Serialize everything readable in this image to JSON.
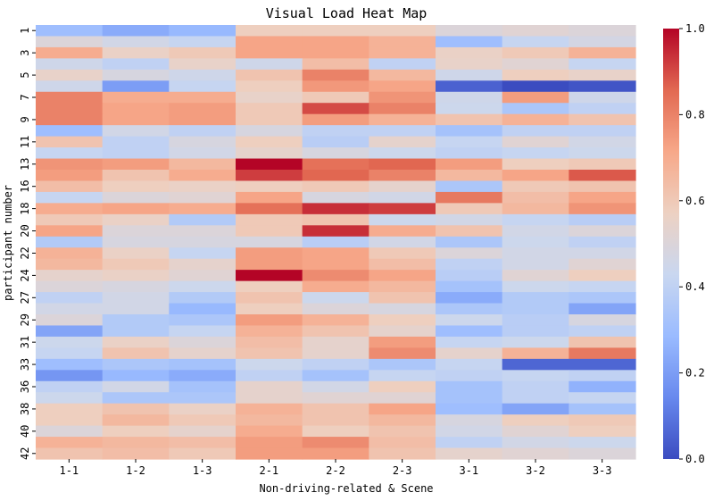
{
  "chart_data": {
    "type": "heatmap",
    "title": "Visual Load Heat Map",
    "xlabel": "Non-driving-related & Scene",
    "ylabel": "participant number",
    "x_categories": [
      "1-1",
      "1-2",
      "1-3",
      "2-1",
      "2-2",
      "2-3",
      "3-1",
      "3-2",
      "3-3"
    ],
    "y_tick_labels": [
      "1",
      "3",
      "5",
      "7",
      "9",
      "11",
      "13",
      "16",
      "18",
      "20",
      "22",
      "24",
      "27",
      "29",
      "31",
      "33",
      "36",
      "38",
      "40",
      "42"
    ],
    "row_count": 39,
    "colormap": "coolwarm",
    "value_range": [
      0,
      1
    ],
    "colorbar_ticks": [
      "0.0",
      "0.2",
      "0.4",
      "0.6",
      "0.8",
      "1.0"
    ],
    "colormap_stops": [
      "#3b4cc0",
      "#6889ee",
      "#9abbff",
      "#c9d7f0",
      "#edd1c2",
      "#f7a889",
      "#e26952",
      "#b40426"
    ],
    "values": [
      [
        0.3,
        0.24,
        0.28,
        0.58,
        0.58,
        0.58,
        0.5,
        0.52,
        0.5
      ],
      [
        0.5,
        0.46,
        0.42,
        0.72,
        0.72,
        0.68,
        0.3,
        0.42,
        0.47
      ],
      [
        0.7,
        0.56,
        0.6,
        0.72,
        0.72,
        0.68,
        0.56,
        0.6,
        0.68
      ],
      [
        0.45,
        0.4,
        0.55,
        0.45,
        0.64,
        0.4,
        0.55,
        0.52,
        0.42
      ],
      [
        0.55,
        0.48,
        0.45,
        0.62,
        0.8,
        0.66,
        0.45,
        0.58,
        0.55
      ],
      [
        0.45,
        0.2,
        0.42,
        0.58,
        0.75,
        0.72,
        0.05,
        0.0,
        0.02
      ],
      [
        0.8,
        0.7,
        0.7,
        0.55,
        0.6,
        0.76,
        0.45,
        0.74,
        0.45
      ],
      [
        0.8,
        0.72,
        0.74,
        0.6,
        0.9,
        0.8,
        0.44,
        0.34,
        0.4
      ],
      [
        0.8,
        0.72,
        0.74,
        0.6,
        0.74,
        0.68,
        0.62,
        0.68,
        0.62
      ],
      [
        0.3,
        0.46,
        0.4,
        0.48,
        0.4,
        0.4,
        0.32,
        0.4,
        0.4
      ],
      [
        0.62,
        0.4,
        0.48,
        0.58,
        0.38,
        0.54,
        0.42,
        0.52,
        0.46
      ],
      [
        0.42,
        0.4,
        0.46,
        0.54,
        0.48,
        0.44,
        0.4,
        0.42,
        0.44
      ],
      [
        0.76,
        0.74,
        0.66,
        1.0,
        0.84,
        0.86,
        0.74,
        0.58,
        0.6
      ],
      [
        0.74,
        0.62,
        0.7,
        0.92,
        0.86,
        0.8,
        0.66,
        0.72,
        0.88
      ],
      [
        0.64,
        0.58,
        0.56,
        0.58,
        0.6,
        0.54,
        0.34,
        0.6,
        0.62
      ],
      [
        0.42,
        0.5,
        0.52,
        0.72,
        0.48,
        0.46,
        0.82,
        0.64,
        0.72
      ],
      [
        0.7,
        0.72,
        0.7,
        0.84,
        0.94,
        0.92,
        0.6,
        0.66,
        0.76
      ],
      [
        0.6,
        0.56,
        0.36,
        0.6,
        0.62,
        0.44,
        0.46,
        0.42,
        0.38
      ],
      [
        0.72,
        0.5,
        0.5,
        0.6,
        0.94,
        0.7,
        0.62,
        0.46,
        0.5
      ],
      [
        0.36,
        0.48,
        0.48,
        0.48,
        0.38,
        0.46,
        0.34,
        0.44,
        0.4
      ],
      [
        0.68,
        0.56,
        0.42,
        0.74,
        0.72,
        0.6,
        0.5,
        0.46,
        0.46
      ],
      [
        0.66,
        0.6,
        0.54,
        0.74,
        0.72,
        0.64,
        0.4,
        0.46,
        0.52
      ],
      [
        0.54,
        0.56,
        0.52,
        1.0,
        0.78,
        0.72,
        0.38,
        0.52,
        0.58
      ],
      [
        0.5,
        0.48,
        0.44,
        0.58,
        0.7,
        0.66,
        0.32,
        0.44,
        0.42
      ],
      [
        0.4,
        0.46,
        0.36,
        0.62,
        0.44,
        0.62,
        0.24,
        0.36,
        0.34
      ],
      [
        0.46,
        0.46,
        0.28,
        0.58,
        0.5,
        0.48,
        0.34,
        0.36,
        0.22
      ],
      [
        0.5,
        0.36,
        0.34,
        0.74,
        0.68,
        0.58,
        0.44,
        0.38,
        0.48
      ],
      [
        0.22,
        0.36,
        0.42,
        0.68,
        0.62,
        0.54,
        0.3,
        0.38,
        0.4
      ],
      [
        0.44,
        0.56,
        0.5,
        0.64,
        0.54,
        0.74,
        0.42,
        0.44,
        0.62
      ],
      [
        0.42,
        0.62,
        0.54,
        0.62,
        0.54,
        0.78,
        0.54,
        0.68,
        0.82
      ],
      [
        0.3,
        0.34,
        0.32,
        0.44,
        0.4,
        0.34,
        0.42,
        0.06,
        0.06
      ],
      [
        0.18,
        0.28,
        0.24,
        0.4,
        0.32,
        0.42,
        0.4,
        0.42,
        0.4
      ],
      [
        0.4,
        0.46,
        0.32,
        0.54,
        0.46,
        0.58,
        0.32,
        0.4,
        0.26
      ],
      [
        0.44,
        0.34,
        0.34,
        0.54,
        0.52,
        0.52,
        0.32,
        0.4,
        0.42
      ],
      [
        0.58,
        0.62,
        0.56,
        0.68,
        0.62,
        0.72,
        0.3,
        0.22,
        0.32
      ],
      [
        0.58,
        0.66,
        0.6,
        0.66,
        0.62,
        0.66,
        0.48,
        0.58,
        0.6
      ],
      [
        0.5,
        0.58,
        0.54,
        0.7,
        0.58,
        0.62,
        0.46,
        0.52,
        0.58
      ],
      [
        0.68,
        0.66,
        0.64,
        0.74,
        0.78,
        0.64,
        0.4,
        0.46,
        0.44
      ],
      [
        0.62,
        0.64,
        0.6,
        0.74,
        0.74,
        0.62,
        0.54,
        0.52,
        0.5
      ]
    ]
  }
}
